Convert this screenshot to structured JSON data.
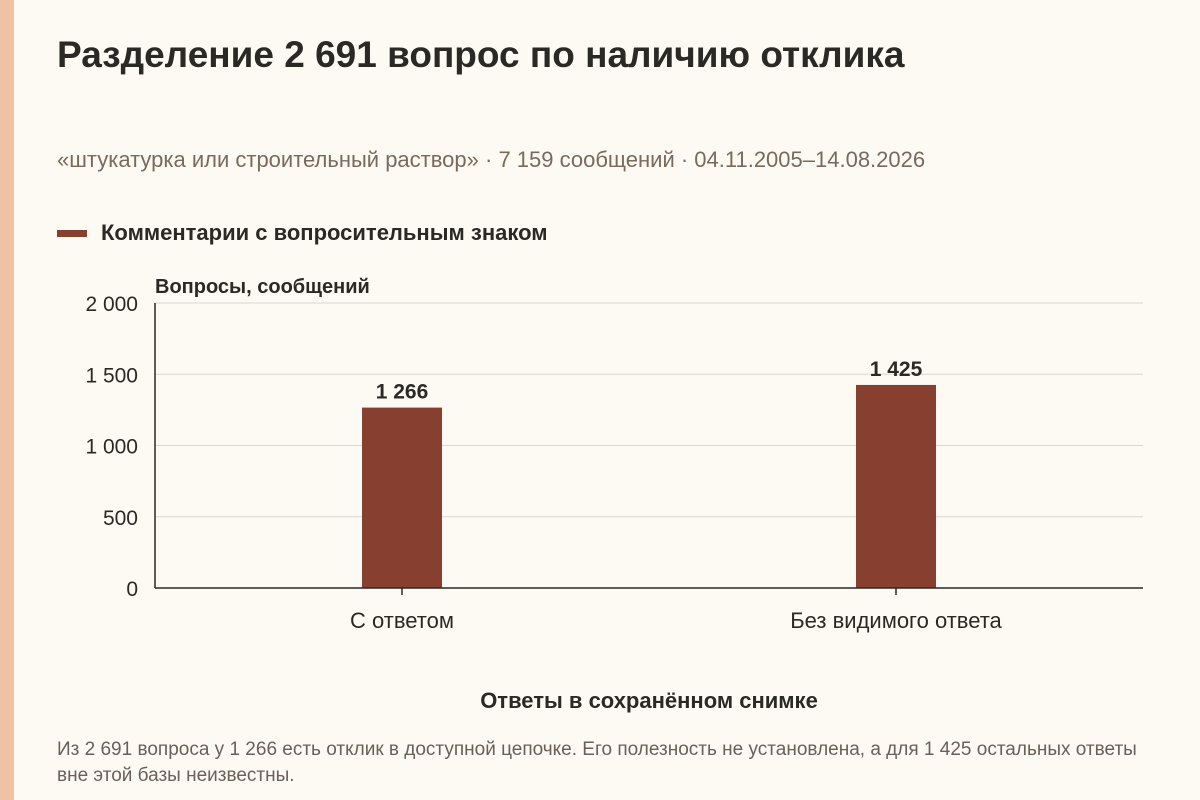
{
  "title": "Разделение 2 691 вопрос по наличию отклика",
  "subtitle": "«штукатурка или строительный раствор» · 7 159 сообщений · 04.11.2005–14.08.2026",
  "note": "Из 2 691 вопроса у 1 266 есть отклик в доступной цепочке. Его полезность не установлена, а для 1 425 остальных ответы вне этой базы неизвестны.",
  "colors": {
    "bar": "#873f2f",
    "accent_strip": "#efc1a5",
    "background": "#fdfaf3",
    "grid": "#d9d6d0",
    "axis": "#2b2926"
  },
  "chart_data": {
    "type": "bar",
    "categories": [
      "С ответом",
      "Без видимого ответа"
    ],
    "series": [
      {
        "name": "Комментарии с вопросительным знаком",
        "values": [
          1266,
          1425
        ]
      }
    ],
    "data_labels": [
      "1 266",
      "1 425"
    ],
    "ylabel": "Вопросы, сообщений",
    "xlabel": "Ответы в сохранённом снимке",
    "ylim": [
      0,
      2000
    ],
    "yticks": [
      0,
      500,
      1000,
      1500,
      2000
    ],
    "ytick_labels": [
      "0",
      "500",
      "1 000",
      "1 500",
      "2 000"
    ],
    "grid": true,
    "legend": "top-left"
  }
}
